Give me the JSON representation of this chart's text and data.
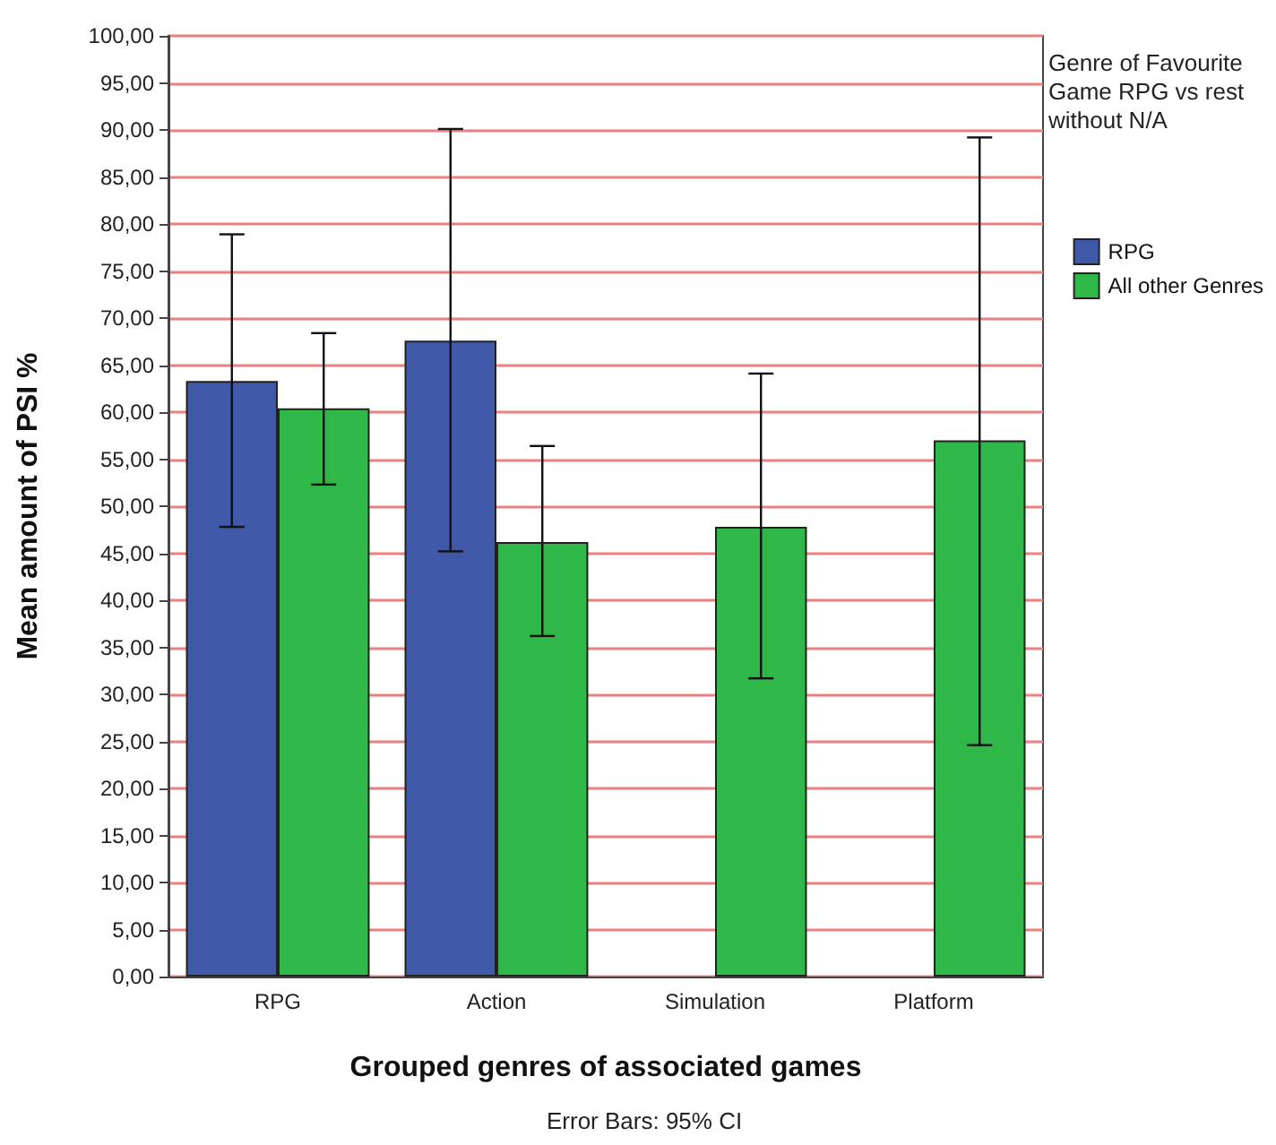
{
  "chart_data": {
    "type": "bar",
    "xlabel": "Grouped genres of associated games",
    "ylabel": "Mean amount of PSI %",
    "legend_title": "Genre of Favourite Game RPG vs rest without N/A",
    "annotations": [
      "Error Bars: 95% CI"
    ],
    "categories": [
      "RPG",
      "Action",
      "Simulation",
      "Platform"
    ],
    "series": [
      {
        "name": "RPG",
        "color": "#3f58a8",
        "values": [
          63.3,
          67.6,
          null,
          null
        ],
        "errors": [
          [
            47.8,
            78.9
          ],
          [
            45.2,
            90.1
          ],
          null,
          null
        ]
      },
      {
        "name": "All other Genres",
        "color": "#2fb847",
        "values": [
          60.4,
          46.2,
          47.8,
          57.0
        ],
        "errors": [
          [
            52.3,
            68.4
          ],
          [
            36.2,
            56.4
          ],
          [
            31.7,
            64.1
          ],
          [
            24.6,
            89.2
          ]
        ]
      }
    ],
    "ylim": [
      0,
      100
    ],
    "yticks": [
      {
        "value": 0,
        "label": "0,00"
      },
      {
        "value": 5,
        "label": "5,00"
      },
      {
        "value": 10,
        "label": "10,00"
      },
      {
        "value": 15,
        "label": "15,00"
      },
      {
        "value": 20,
        "label": "20,00"
      },
      {
        "value": 25,
        "label": "25,00"
      },
      {
        "value": 30,
        "label": "30,00"
      },
      {
        "value": 35,
        "label": "35,00"
      },
      {
        "value": 40,
        "label": "40,00"
      },
      {
        "value": 45,
        "label": "45,00"
      },
      {
        "value": 50,
        "label": "50,00"
      },
      {
        "value": 55,
        "label": "55,00"
      },
      {
        "value": 60,
        "label": "60,00"
      },
      {
        "value": 65,
        "label": "65,00"
      },
      {
        "value": 70,
        "label": "70,00"
      },
      {
        "value": 75,
        "label": "75,00"
      },
      {
        "value": 80,
        "label": "80,00"
      },
      {
        "value": 85,
        "label": "85,00"
      },
      {
        "value": 90,
        "label": "90,00"
      },
      {
        "value": 95,
        "label": "95,00"
      },
      {
        "value": 100,
        "label": "100,00"
      }
    ],
    "grid": "y",
    "legend": "top right"
  }
}
